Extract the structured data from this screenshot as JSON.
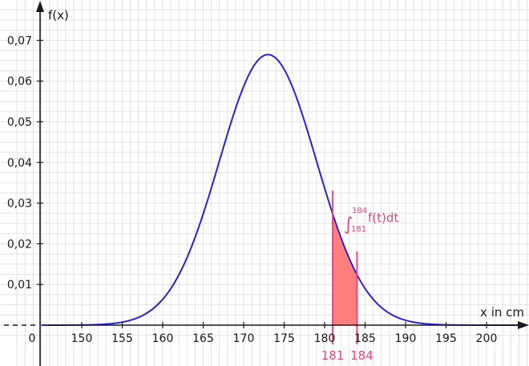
{
  "chart_data": {
    "type": "line",
    "function": "normal-pdf",
    "mu": 173,
    "sigma": 6,
    "x_range": [
      145,
      205
    ],
    "xlim": [
      141,
      205
    ],
    "ylim": [
      -0.001,
      0.0765
    ],
    "xticks": [
      150,
      155,
      160,
      165,
      170,
      175,
      180,
      185,
      190,
      195,
      200
    ],
    "yticks": [
      0.01,
      0.02,
      0.03,
      0.04,
      0.05,
      0.06,
      0.07
    ],
    "xtick_labels": [
      "150",
      "155",
      "160",
      "165",
      "170",
      "175",
      "180",
      "185",
      "190",
      "195",
      "200"
    ],
    "ytick_labels": [
      "0,01",
      "0,02",
      "0,03",
      "0,04",
      "0,05",
      "0,06",
      "0,07"
    ],
    "origin_label": "0",
    "xlabel": "x in cm",
    "ylabel": "f(x)",
    "grid": true,
    "shaded_interval": {
      "from": 181,
      "to": 184,
      "from_label": "181",
      "to_label": "184",
      "integral": {
        "symbol": "∫",
        "upper": "184",
        "lower": "181",
        "integrand": "f(t)dt"
      }
    },
    "colors": {
      "curve": "#2a22d6",
      "shade": "#ff7f7f",
      "bounds": "#e8457e",
      "grid": "#e2e2e2",
      "axis": "#1a1a1a"
    }
  }
}
